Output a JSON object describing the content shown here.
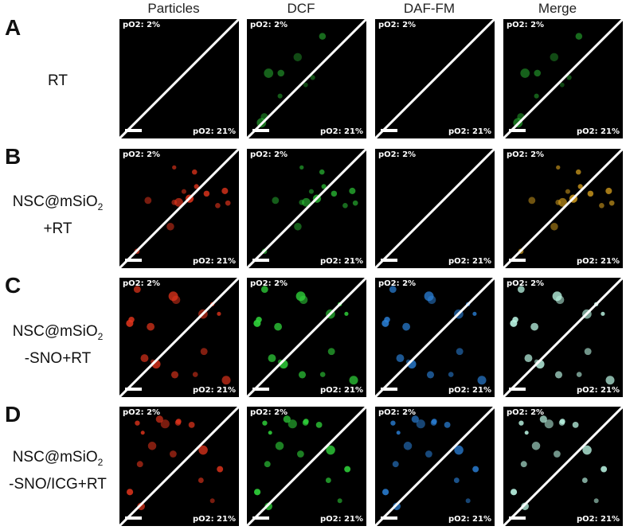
{
  "columns": [
    "Particles",
    "DCF",
    "DAF-FM",
    "Merge"
  ],
  "panel_labels": {
    "low": "pO2: 2%",
    "high": "pO2: 21%"
  },
  "rows": [
    {
      "letter": "A",
      "label_line1": "RT",
      "label_sub": "",
      "label_tail": "",
      "label_line2": ""
    },
    {
      "letter": "B",
      "label_line1": "NSC@mSiO",
      "label_sub": "2",
      "label_tail": "",
      "label_line2": "+RT"
    },
    {
      "letter": "C",
      "label_line1": "NSC@mSiO",
      "label_sub": "2",
      "label_tail": "",
      "label_line2": "-SNO+RT"
    },
    {
      "letter": "D",
      "label_line1": "NSC@mSiO",
      "label_sub": "2",
      "label_tail": "",
      "label_line2": "-SNO/ICG+RT"
    }
  ],
  "channel_colors": {
    "particles": "#e0341c",
    "dcf": "#2fd13a",
    "daf_fm": "#2a7fd6",
    "merge_particles_dcf": "#d9a21f",
    "merge_all": "#b8f2e0"
  }
}
